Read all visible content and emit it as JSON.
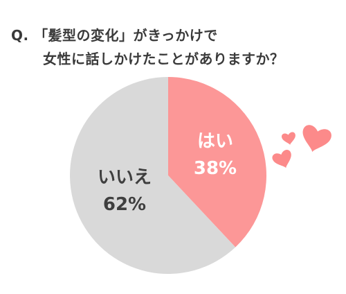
{
  "title": {
    "line1": "Q. 「髪型の変化」がきっかけで",
    "line2": "女性に話しかけたことがありますか？"
  },
  "colors": {
    "yes": "#fc9797",
    "no": "#d9d9d9",
    "heart": "#fc8a8a"
  },
  "decoration": {
    "icon": "hearts-icon"
  },
  "chart_data": {
    "type": "pie",
    "categories": [
      "はい",
      "いいえ"
    ],
    "values": [
      38,
      62
    ],
    "value_labels": [
      "38%",
      "62%"
    ]
  }
}
